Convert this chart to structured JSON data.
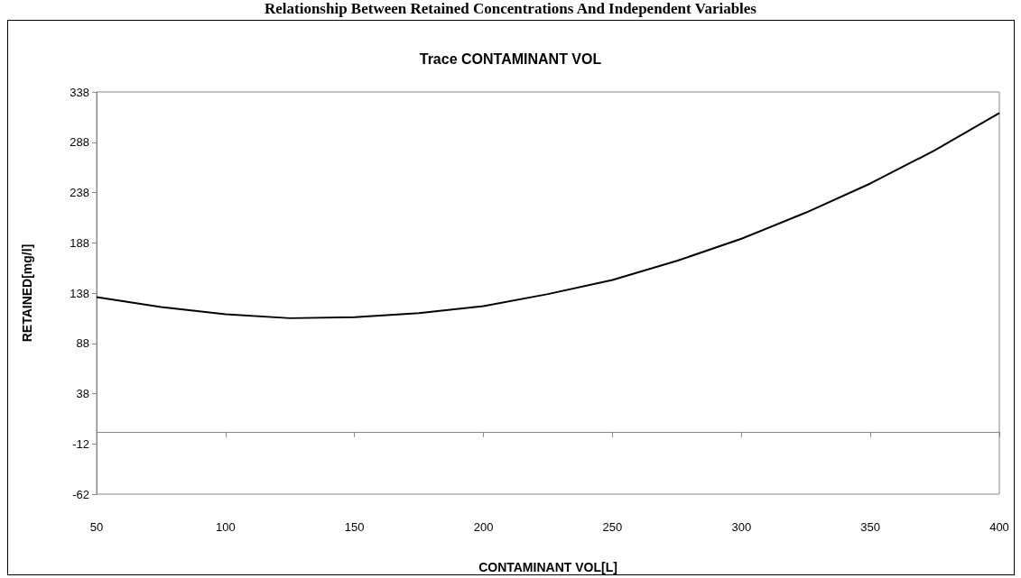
{
  "chart_data": {
    "type": "line",
    "title": "Relationship Between Retained Concentrations And Independent Variables",
    "subtitle": "Trace CONTAMINANT VOL",
    "xlabel": "CONTAMINANT VOL[L]",
    "ylabel": "RETAINED[mg/l]",
    "x": [
      50,
      75,
      100,
      125,
      150,
      175,
      200,
      225,
      250,
      275,
      300,
      325,
      350,
      375,
      400
    ],
    "series": [
      {
        "color": "#000000",
        "values": [
          134,
          124,
          117,
          113,
          114,
          118,
          125,
          137,
          151,
          170,
          192,
          218,
          247,
          280,
          317
        ]
      }
    ],
    "xlim": [
      50,
      400
    ],
    "xticks": [
      50,
      100,
      150,
      200,
      250,
      300,
      350,
      400
    ],
    "ylim": [
      -62,
      338
    ],
    "yticks": [
      -62,
      -12,
      38,
      88,
      138,
      188,
      238,
      288,
      338
    ],
    "grid": false,
    "marker": "none",
    "line_style": "solid"
  }
}
